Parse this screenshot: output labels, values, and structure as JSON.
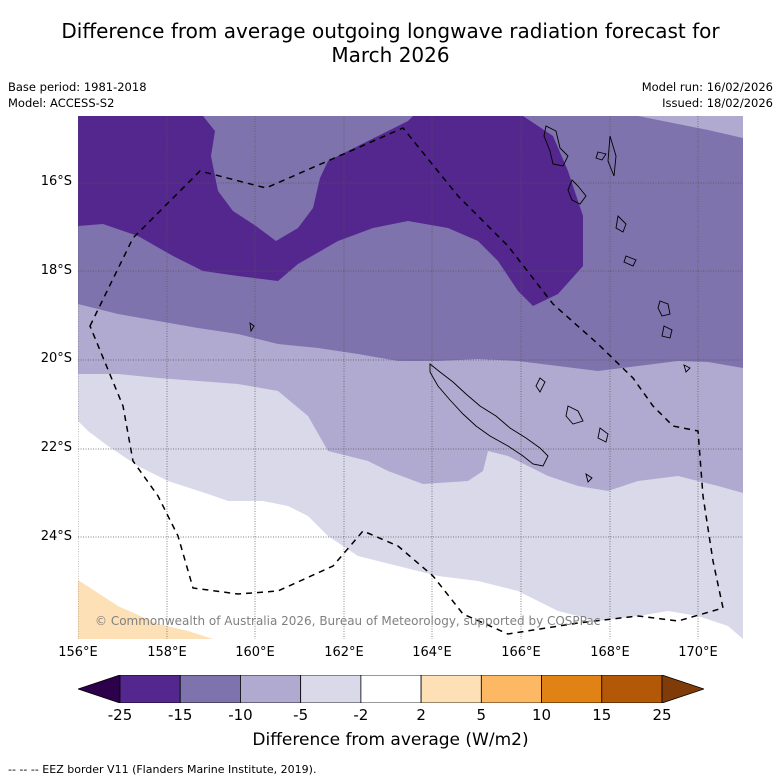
{
  "header": {
    "title_line1": "Difference from average outgoing longwave radiation forecast for",
    "title_line2": "March 2026",
    "base_period": "Base period: 1981-2018",
    "model": "Model: ACCESS-S2",
    "model_run": "Model run: 16/02/2026",
    "issued": "Issued: 18/02/2026"
  },
  "map": {
    "lat_labels": [
      "16°S",
      "18°S",
      "20°S",
      "22°S",
      "24°S"
    ],
    "lon_labels": [
      "156°E",
      "158°E",
      "160°E",
      "162°E",
      "164°E",
      "166°E",
      "168°E",
      "170°E"
    ],
    "extent": {
      "lon_min": 156.0,
      "lon_max": 171.0,
      "lat_min": -26.2,
      "lat_max": -14.6
    },
    "copyright": "© Commonwealth of Australia 2026, Bureau of Meteorology, supported by COSPPac",
    "regions_present": [
      {
        "range": "-25 to -15",
        "color": "#54278f",
        "location": "north-west and north-central band"
      },
      {
        "range": "-15 to -10",
        "color": "#7f73ad",
        "location": "band across ~17-20°S, east side"
      },
      {
        "range": "-10 to -5",
        "color": "#b0aad0",
        "location": "band ~19-23°S around New Caledonia"
      },
      {
        "range": "-5 to -2",
        "color": "#d9d9ea",
        "location": "band ~20-26°S"
      },
      {
        "range": "-2 to 2",
        "color": "#ffffff",
        "location": "south-west"
      },
      {
        "range": "2 to 5",
        "color": "#fee0b6",
        "location": "far south-west corner"
      }
    ]
  },
  "colorbar": {
    "label": "Difference from average (W/m2)",
    "ticks": [
      "-25",
      "-15",
      "-10",
      "-5",
      "-2",
      "2",
      "5",
      "10",
      "15",
      "25"
    ],
    "under_color": "#2d004b",
    "over_color": "#7f3b08",
    "colors": [
      "#54278f",
      "#7f73ad",
      "#b0aad0",
      "#d9d9ea",
      "#ffffff",
      "#fee0b6",
      "#fdb863",
      "#e08214",
      "#b35806"
    ]
  },
  "footnote": "--  --  -- EEZ border V11 (Flanders Marine Institute, 2019)."
}
